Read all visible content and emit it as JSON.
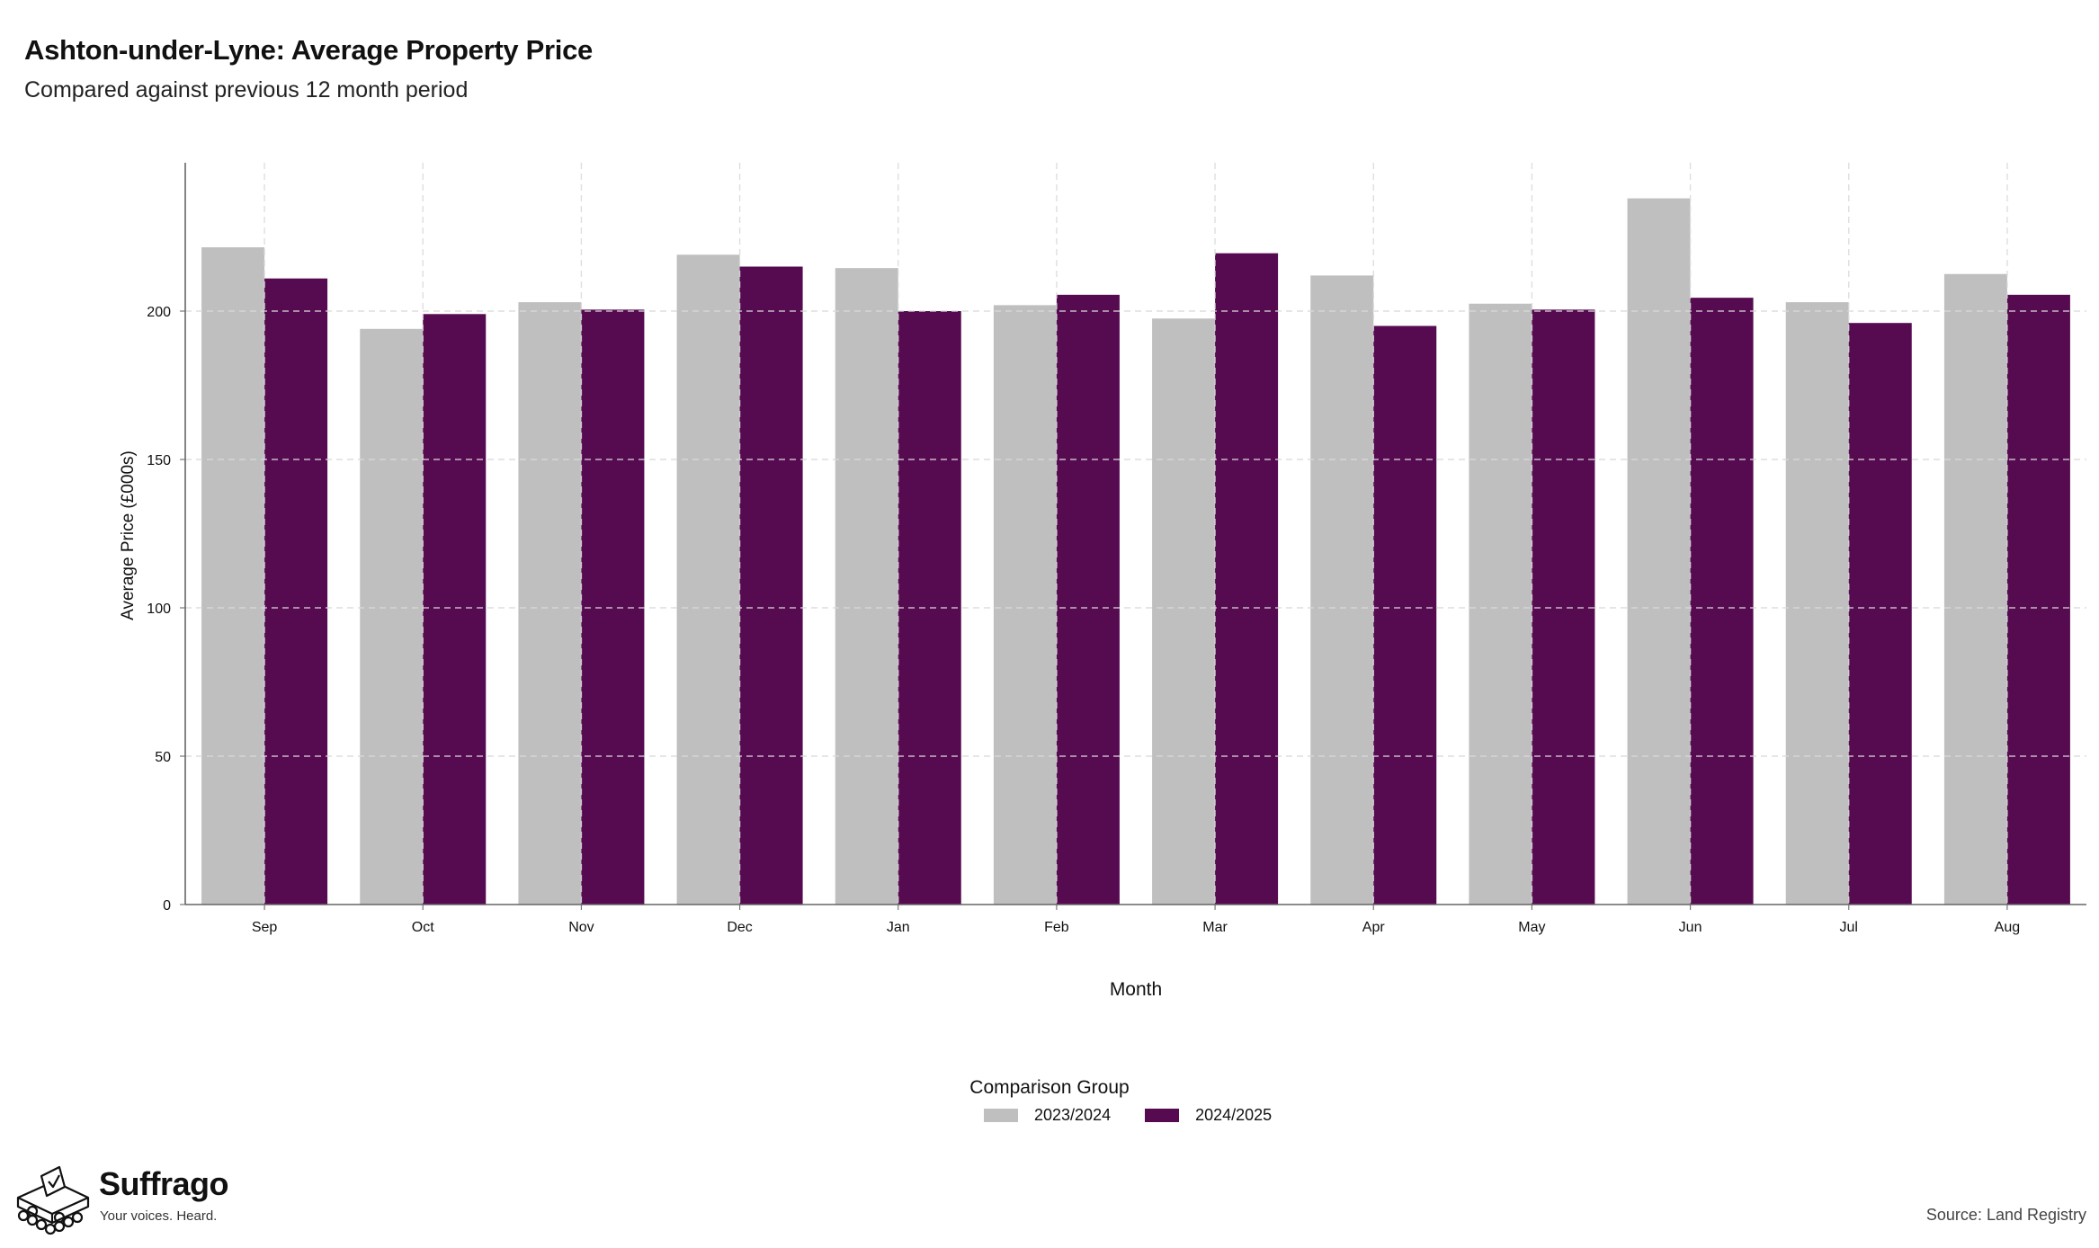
{
  "header": {
    "title": "Ashton-under-Lyne: Average Property Price",
    "subtitle": "Compared against previous 12 month period"
  },
  "chart_data": {
    "type": "bar",
    "categories": [
      "Sep",
      "Oct",
      "Nov",
      "Dec",
      "Jan",
      "Feb",
      "Mar",
      "Apr",
      "May",
      "Jun",
      "Jul",
      "Aug"
    ],
    "series": [
      {
        "name": "2023/2024",
        "color": "#bfbfbf",
        "values": [
          221.5,
          194,
          203,
          219,
          214.5,
          202,
          197.5,
          212,
          202.5,
          238,
          203,
          212.5
        ]
      },
      {
        "name": "2024/2025",
        "color": "#560b51",
        "values": [
          211,
          199,
          200.5,
          215,
          200,
          205.5,
          219.5,
          195,
          200.5,
          204.5,
          196,
          205.5
        ]
      }
    ],
    "xlabel": "Month",
    "ylabel": "Average Price (£000s)",
    "ylim": [
      0,
      250
    ],
    "yticks": [
      0,
      50,
      100,
      150,
      200
    ],
    "grid": true,
    "legend": {
      "title": "Comparison Group",
      "position": "bottom-center"
    }
  },
  "footer": {
    "brand": "Suffrago",
    "tagline": "Your voices. Heard.",
    "source": "Source: Land Registry"
  }
}
